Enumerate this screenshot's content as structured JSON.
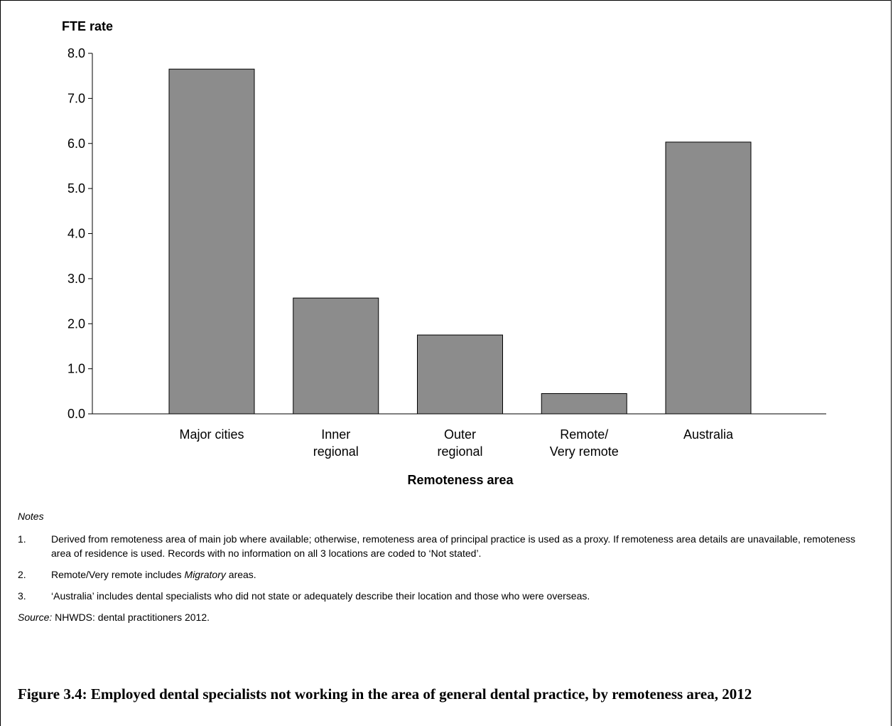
{
  "chart_data": {
    "type": "bar",
    "ylabel": "FTE rate",
    "xlabel": "Remoteness area",
    "ylim": [
      0,
      8
    ],
    "yticks": [
      "0.0",
      "1.0",
      "2.0",
      "3.0",
      "4.0",
      "5.0",
      "6.0",
      "7.0",
      "8.0"
    ],
    "categories": [
      [
        "Major cities"
      ],
      [
        "Inner",
        "regional"
      ],
      [
        "Outer",
        "regional"
      ],
      [
        "Remote/",
        "Very remote"
      ],
      [
        "Australia"
      ]
    ],
    "values": [
      7.65,
      2.57,
      1.75,
      0.45,
      6.03
    ],
    "bar_color": "#8c8c8c",
    "grid": false,
    "legend": "none"
  },
  "notes": {
    "heading": "Notes",
    "items": [
      {
        "num": "1.",
        "text": "Derived from remoteness area of main job where available; otherwise, remoteness area of principal practice is used as a proxy. If remoteness area details are unavailable, remoteness area of residence is used. Records with no information on all 3 locations are coded to ‘Not stated’."
      },
      {
        "num": "2.",
        "text_before": "Remote/Very remote includes ",
        "text_italic": "Migratory",
        "text_after": " areas."
      },
      {
        "num": "3.",
        "text": "‘Australia’ includes dental specialists who did not state or adequately describe their location and those who were overseas."
      }
    ],
    "source_label": "Source:",
    "source_text": " NHWDS: dental practitioners 2012."
  },
  "caption": "Figure 3.4: Employed dental specialists not working in the area of general dental practice, by remoteness area, 2012"
}
